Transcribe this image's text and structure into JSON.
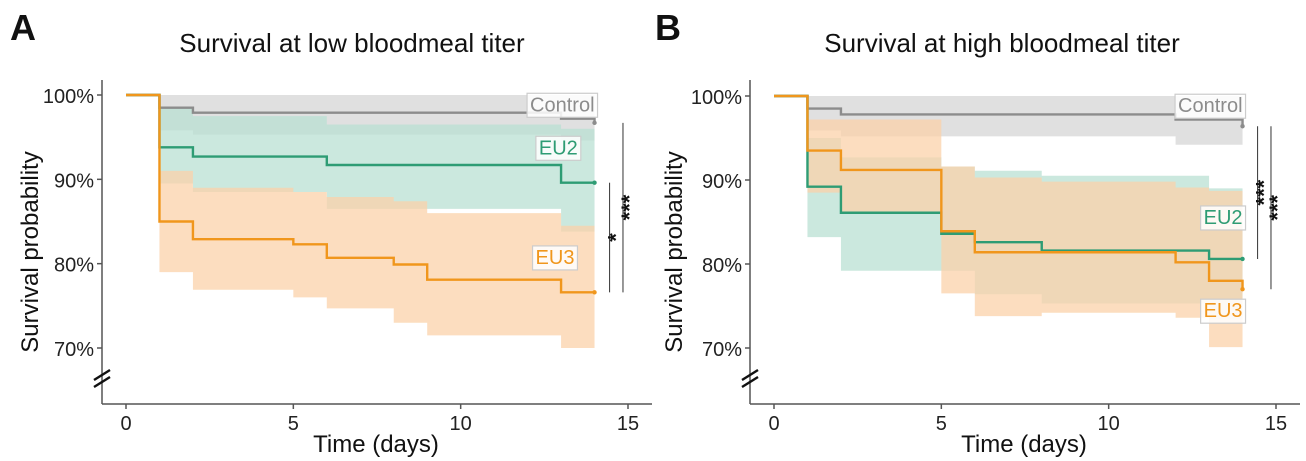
{
  "colors": {
    "control": "#8c8c8c",
    "control_band": "#d6d6d6",
    "eu2": "#2e9c74",
    "eu2_band": "#b9e0d3",
    "eu3": "#f0961c",
    "eu3_band": "#fbd2aa",
    "axis": "#555555",
    "text": "#111111"
  },
  "chart_data": [
    {
      "panel_label": "A",
      "type": "line",
      "title": "Survival at low bloodmeal titer",
      "xlabel": "Time (days)",
      "ylabel": "Survival probability",
      "xlim": [
        -0.6,
        15.8
      ],
      "ylim": [
        64,
        102
      ],
      "xticks": [
        0,
        5,
        10,
        15
      ],
      "yticks": [
        70,
        80,
        90,
        100
      ],
      "ytick_labels": [
        "70%",
        "80%",
        "90%",
        "100%"
      ],
      "axis_break": true,
      "grid": false,
      "legend": "inline labels at right end of each curve",
      "series": [
        {
          "name": "Control",
          "color_key": "control",
          "steps": [
            [
              0,
              100
            ],
            [
              1,
              98.5
            ],
            [
              2,
              97.9
            ],
            [
              6,
              97.9
            ],
            [
              13,
              97.2
            ],
            [
              14,
              96.7
            ]
          ],
          "band": [
            [
              0,
              100,
              100
            ],
            [
              1,
              95.8,
              100
            ],
            [
              2,
              95.3,
              100
            ],
            [
              6,
              95.3,
              100
            ],
            [
              13,
              94.6,
              100
            ],
            [
              14,
              94.6,
              100
            ]
          ],
          "label_at": [
            14,
            98.9
          ]
        },
        {
          "name": "EU2",
          "color_key": "eu2",
          "steps": [
            [
              0,
              100
            ],
            [
              1,
              93.8
            ],
            [
              2,
              92.7
            ],
            [
              6,
              91.7
            ],
            [
              13,
              89.6
            ],
            [
              14,
              89.6
            ]
          ],
          "band": [
            [
              0,
              100,
              100
            ],
            [
              1,
              89.5,
              98.5
            ],
            [
              2,
              88.5,
              97.5
            ],
            [
              6,
              86.5,
              96.5
            ],
            [
              13,
              83.8,
              96
            ],
            [
              14,
              83.8,
              96
            ]
          ],
          "label_at": [
            13.5,
            93.8
          ]
        },
        {
          "name": "EU3",
          "color_key": "eu3",
          "steps": [
            [
              0,
              100
            ],
            [
              1,
              85
            ],
            [
              2,
              82.9
            ],
            [
              5,
              82.3
            ],
            [
              6,
              80.7
            ],
            [
              8,
              79.9
            ],
            [
              9,
              78.1
            ],
            [
              13,
              76.6
            ],
            [
              14,
              76.6
            ]
          ],
          "band": [
            [
              0,
              100,
              100
            ],
            [
              1,
              79,
              91
            ],
            [
              2,
              76.9,
              89
            ],
            [
              5,
              76,
              88.5
            ],
            [
              6,
              74.7,
              87.9
            ],
            [
              8,
              73,
              87.4
            ],
            [
              9,
              71.5,
              86
            ],
            [
              13,
              70,
              84.5
            ],
            [
              14,
              70,
              84.5
            ]
          ],
          "label_at": [
            13.4,
            80.8
          ]
        }
      ],
      "significance": [
        {
          "label": "*",
          "from": 89.6,
          "to": 76.6,
          "x": 14.45
        },
        {
          "label": "***",
          "from": 96.7,
          "to": 76.6,
          "x": 14.85
        }
      ]
    },
    {
      "panel_label": "B",
      "type": "line",
      "title": "Survival at high bloodmeal titer",
      "xlabel": "Time (days)",
      "ylabel": "Survival probability",
      "xlim": [
        -0.6,
        15.8
      ],
      "ylim": [
        64,
        102
      ],
      "xticks": [
        0,
        5,
        10,
        15
      ],
      "yticks": [
        70,
        80,
        90,
        100
      ],
      "ytick_labels": [
        "70%",
        "80%",
        "90%",
        "100%"
      ],
      "axis_break": true,
      "grid": false,
      "legend": "inline labels at right end of each curve",
      "series": [
        {
          "name": "Control",
          "color_key": "control",
          "steps": [
            [
              0,
              100
            ],
            [
              1,
              98.5
            ],
            [
              2,
              97.8
            ],
            [
              12,
              97.2
            ],
            [
              14,
              96.4
            ]
          ],
          "band": [
            [
              0,
              100,
              100
            ],
            [
              1,
              95.9,
              100
            ],
            [
              2,
              95.2,
              100
            ],
            [
              12,
              94.2,
              100
            ],
            [
              14,
              94.2,
              100
            ]
          ],
          "label_at": [
            14,
            98.9
          ]
        },
        {
          "name": "EU2",
          "color_key": "eu2",
          "steps": [
            [
              0,
              100
            ],
            [
              1,
              89.2
            ],
            [
              2,
              86.1
            ],
            [
              5,
              83.6
            ],
            [
              6,
              82.6
            ],
            [
              8,
              81.6
            ],
            [
              13,
              80.6
            ],
            [
              14,
              80.6
            ]
          ],
          "band": [
            [
              0,
              100,
              100
            ],
            [
              1,
              83.2,
              95
            ],
            [
              2,
              79.2,
              92.7
            ],
            [
              5,
              79.2,
              91.6
            ],
            [
              6,
              76.4,
              91.1
            ],
            [
              8,
              75.3,
              90.5
            ],
            [
              13,
              73.4,
              89
            ],
            [
              14,
              73.4,
              89
            ]
          ],
          "label_at": [
            14,
            85.6
          ]
        },
        {
          "name": "EU3",
          "color_key": "eu3",
          "steps": [
            [
              0,
              100
            ],
            [
              1,
              93.5
            ],
            [
              2,
              91.2
            ],
            [
              5,
              83.9
            ],
            [
              6,
              81.4
            ],
            [
              12,
              80.2
            ],
            [
              13,
              78
            ],
            [
              14,
              77
            ]
          ],
          "band": [
            [
              0,
              100,
              100
            ],
            [
              1,
              88.5,
              97.2
            ],
            [
              2,
              86.2,
              97.2
            ],
            [
              5,
              76.5,
              91.6
            ],
            [
              6,
              73.8,
              90.3
            ],
            [
              8,
              74.2,
              89.8
            ],
            [
              12,
              73.6,
              89.1
            ],
            [
              13,
              70.1,
              88.7
            ],
            [
              14,
              70.1,
              88.7
            ]
          ],
          "label_at": [
            14,
            74.5
          ]
        }
      ],
      "significance": [
        {
          "label": "***",
          "from": 96.4,
          "to": 80.6,
          "x": 14.45
        },
        {
          "label": "***",
          "from": 96.4,
          "to": 77,
          "x": 14.85
        }
      ]
    }
  ]
}
